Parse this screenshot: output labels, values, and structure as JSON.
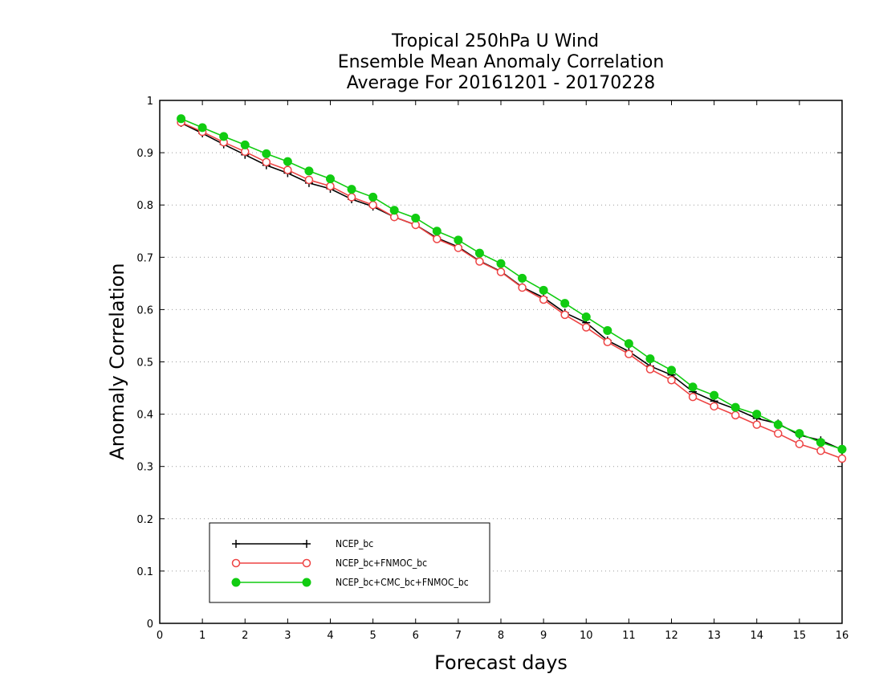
{
  "chart_data": {
    "type": "line",
    "title": [
      "Tropical 250hPa U Wind",
      "Ensemble Mean Anomaly Correlation",
      "Average For 20161201 - 20170228"
    ],
    "xlabel": "Forecast days",
    "ylabel": "Anomaly Correlation",
    "xlim": [
      0,
      16
    ],
    "ylim": [
      0,
      1
    ],
    "xticks": [
      "0",
      "1",
      "2",
      "3",
      "4",
      "5",
      "6",
      "7",
      "8",
      "9",
      "10",
      "11",
      "12",
      "13",
      "14",
      "15",
      "16"
    ],
    "yticks": [
      "0",
      "0.1",
      "0.2",
      "0.3",
      "0.4",
      "0.5",
      "0.6",
      "0.7",
      "0.8",
      "0.9",
      "1"
    ],
    "grid": "y-dotted",
    "legend_position": "bottom-left",
    "x": [
      0.5,
      1,
      1.5,
      2,
      2.5,
      3,
      3.5,
      4,
      4.5,
      5,
      5.5,
      6,
      6.5,
      7,
      7.5,
      8,
      8.5,
      9,
      9.5,
      10,
      10.5,
      11,
      11.5,
      12,
      12.5,
      13,
      13.5,
      14,
      14.5,
      15,
      15.5,
      16
    ],
    "series": [
      {
        "name": "NCEP_bc",
        "color": "#000000",
        "marker": "plus",
        "values": [
          0.957,
          0.937,
          0.916,
          0.896,
          0.876,
          0.861,
          0.842,
          0.831,
          0.811,
          0.797,
          0.777,
          0.762,
          0.737,
          0.72,
          0.693,
          0.673,
          0.643,
          0.623,
          0.594,
          0.575,
          0.541,
          0.52,
          0.492,
          0.475,
          0.443,
          0.425,
          0.41,
          0.392,
          0.382,
          0.36,
          0.35,
          0.332
        ]
      },
      {
        "name": "NCEP_bc+FNMOC_bc",
        "color": "#ee4444",
        "marker": "open-circle",
        "values": [
          0.958,
          0.94,
          0.92,
          0.902,
          0.882,
          0.867,
          0.848,
          0.836,
          0.815,
          0.8,
          0.777,
          0.762,
          0.735,
          0.718,
          0.692,
          0.672,
          0.642,
          0.619,
          0.59,
          0.566,
          0.538,
          0.515,
          0.486,
          0.465,
          0.433,
          0.415,
          0.398,
          0.38,
          0.363,
          0.343,
          0.33,
          0.315
        ]
      },
      {
        "name": "NCEP_bc+CMC_bc+FNMOC_bc",
        "color": "#11cc11",
        "marker": "filled-circle",
        "values": [
          0.965,
          0.948,
          0.931,
          0.915,
          0.898,
          0.883,
          0.865,
          0.85,
          0.83,
          0.815,
          0.79,
          0.775,
          0.75,
          0.733,
          0.708,
          0.688,
          0.66,
          0.637,
          0.612,
          0.586,
          0.56,
          0.535,
          0.506,
          0.484,
          0.452,
          0.436,
          0.413,
          0.4,
          0.38,
          0.363,
          0.346,
          0.333
        ]
      }
    ]
  }
}
